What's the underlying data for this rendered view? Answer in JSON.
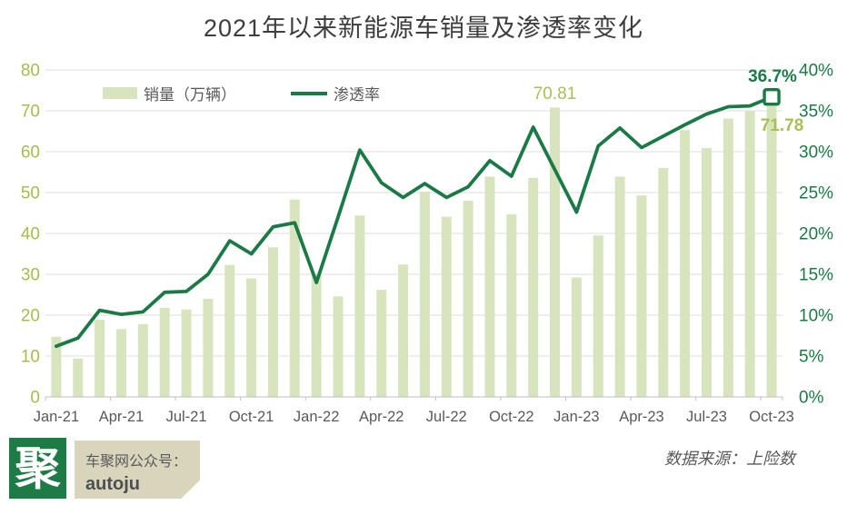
{
  "title": "2021年以来新能源车销量及渗透率变化",
  "legend": {
    "sales_label": "销量（万辆）",
    "penetration_label": "渗透率"
  },
  "annotations": {
    "dec22_sales_label": "70.81",
    "oct23_penetration_label": "36.7%",
    "oct23_sales_label": "71.78"
  },
  "footer": {
    "logo_char": "聚",
    "account_prefix": "车聚网公众号：",
    "account_name": "autoju",
    "source": "数据来源：上险数"
  },
  "colors": {
    "bar_fill": "#d8e4be",
    "line": "#1a7a46",
    "left_axis_text": "#a6bc4c",
    "right_axis_text": "#1a7a46",
    "x_axis_text": "#595959",
    "gridline": "#dcdcdc",
    "axis_line": "#bfbfbf",
    "annotation_olive": "#a9bf56",
    "annotation_green": "#1a7a46",
    "logo_bg": "#1d7c45",
    "account_box_bg": "#d9d5bd",
    "title_text": "#3d3d3d"
  },
  "chart_data": {
    "type": "bar+line combo",
    "title": "2021年以来新能源车销量及渗透率变化",
    "grid": true,
    "legend_position": "top-left-inside",
    "categories": [
      "Jan-21",
      "Feb-21",
      "Mar-21",
      "Apr-21",
      "May-21",
      "Jun-21",
      "Jul-21",
      "Aug-21",
      "Sep-21",
      "Oct-21",
      "Nov-21",
      "Dec-21",
      "Jan-22",
      "Feb-22",
      "Mar-22",
      "Apr-22",
      "May-22",
      "Jun-22",
      "Jul-22",
      "Aug-22",
      "Sep-22",
      "Oct-22",
      "Nov-22",
      "Dec-22",
      "Jan-23",
      "Feb-23",
      "Mar-23",
      "Apr-23",
      "May-23",
      "Jun-23",
      "Jul-23",
      "Aug-23",
      "Sep-23",
      "Oct-23"
    ],
    "x_tick_label_indices": [
      0,
      3,
      6,
      9,
      12,
      15,
      18,
      21,
      24,
      27,
      30,
      33
    ],
    "x_tick_labels": [
      "Jan-21",
      "Apr-21",
      "Jul-21",
      "Oct-21",
      "Jan-22",
      "Apr-22",
      "Jul-22",
      "Oct-22",
      "Jan-23",
      "Apr-23",
      "Jul-23",
      "Oct-23"
    ],
    "series": [
      {
        "name": "销量（万辆）",
        "type": "bar",
        "axis": "left",
        "values": [
          14.7,
          9.4,
          18.9,
          16.6,
          17.8,
          21.8,
          21.4,
          24.0,
          32.3,
          29.0,
          36.6,
          48.3,
          30.0,
          24.6,
          44.4,
          26.2,
          32.4,
          50.2,
          44.1,
          48.0,
          53.9,
          44.7,
          53.6,
          70.81,
          29.2,
          39.5,
          53.9,
          49.3,
          56.0,
          65.3,
          60.9,
          68.1,
          69.9,
          71.78
        ]
      },
      {
        "name": "渗透率",
        "type": "line",
        "axis": "right",
        "unit": "%",
        "values": [
          6.2,
          7.2,
          10.6,
          10.1,
          10.4,
          12.8,
          12.9,
          15.0,
          19.1,
          17.5,
          20.8,
          21.3,
          14.0,
          22.0,
          30.2,
          26.2,
          24.4,
          26.1,
          24.4,
          25.7,
          28.9,
          27.0,
          33.0,
          27.8,
          22.6,
          30.7,
          32.9,
          30.5,
          31.9,
          33.3,
          34.6,
          35.5,
          35.6,
          36.7
        ]
      }
    ],
    "left_axis": {
      "min": 0,
      "max": 80,
      "step": 10
    },
    "right_axis": {
      "min": 0,
      "max": 40,
      "step": 5,
      "suffix": "%"
    },
    "point_labels": [
      {
        "index": 23,
        "series": "销量（万辆）",
        "text": "70.81"
      },
      {
        "index": 33,
        "series": "销量（万辆）",
        "text": "71.78"
      },
      {
        "index": 33,
        "series": "渗透率",
        "text": "36.7%"
      }
    ],
    "last_point_marker": "hollow-square"
  }
}
